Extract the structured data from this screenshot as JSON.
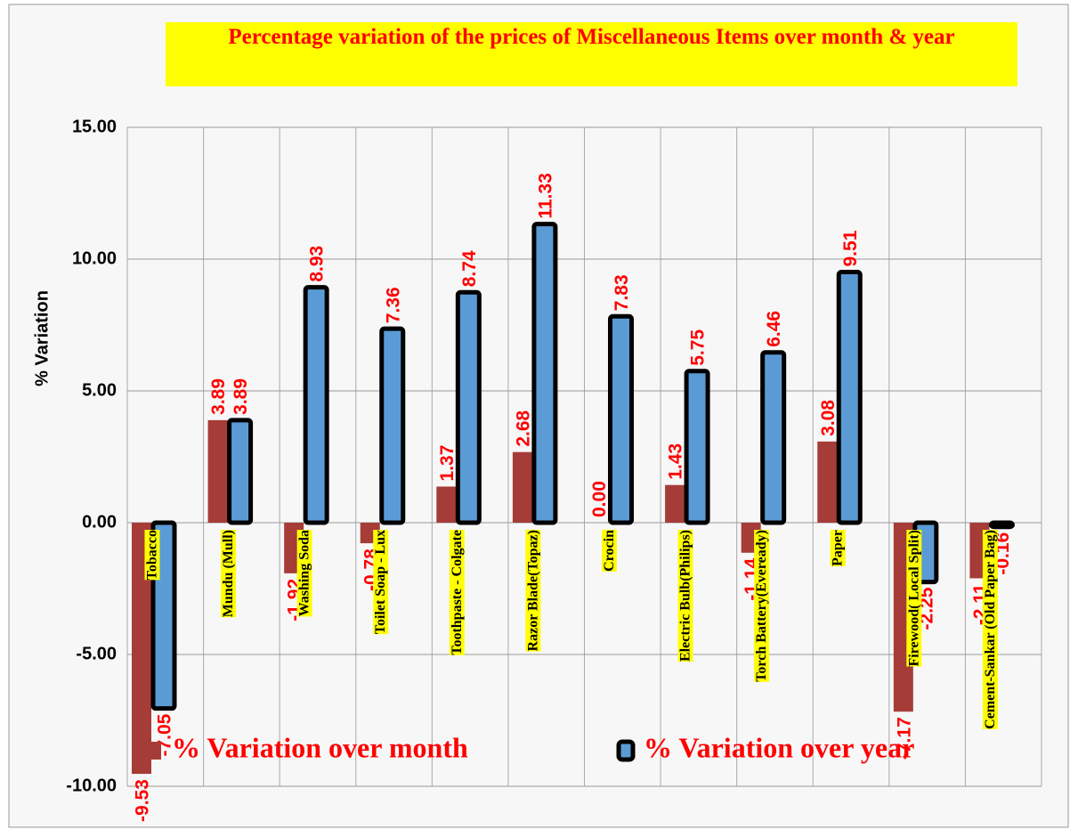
{
  "chart_data": {
    "type": "bar",
    "title": "Percentage variation of the prices of Miscellaneous Items over month & year",
    "y_label": "% Variation",
    "categories": [
      "Tobacco",
      "Mundu (Mull)",
      "Washing Soda",
      "Toilet Soap - Lux",
      "Toothpaste - Colgate",
      "Razor Blade(Topaz)",
      "Crocin",
      "Electric Bulb(Philips)",
      "Torch Battery(Eveready)",
      "Paper",
      "Firewood( Local Split)",
      "Cement-Sankar (Old Paper Bag)"
    ],
    "series": [
      {
        "name": "% Variation over month",
        "color": "#a63c38",
        "values": [
          -9.53,
          3.89,
          -1.92,
          -0.78,
          1.37,
          2.68,
          0,
          1.43,
          -1.14,
          3.08,
          -7.17,
          -2.11
        ],
        "value_labels": [
          "-9.53",
          "3.89",
          "-1.92",
          "-0.78",
          "1.37",
          "2.68",
          "0.00",
          "1.43",
          "-1.14",
          "3.08",
          "-7.17",
          "-2.11"
        ]
      },
      {
        "name": "% Variation over year",
        "color": "#5b9bd5",
        "values": [
          -7.05,
          3.89,
          8.93,
          7.36,
          8.74,
          11.33,
          7.83,
          5.75,
          6.46,
          9.51,
          -2.25,
          -0.16
        ],
        "value_labels": [
          "-7.05",
          "3.89",
          "8.93",
          "7.36",
          "8.74",
          "11.33",
          "7.83",
          "5.75",
          "6.46",
          "9.51",
          "-2.25",
          "-0.16"
        ]
      }
    ],
    "ylim": [
      -10,
      15
    ],
    "yticks": [
      {
        "value": -10,
        "label": "-10.00"
      },
      {
        "value": -5,
        "label": "-5.00"
      },
      {
        "value": 0,
        "label": "0.00"
      },
      {
        "value": 5,
        "label": "5.00"
      },
      {
        "value": 10,
        "label": "10.00"
      },
      {
        "value": 15,
        "label": "15.00"
      }
    ],
    "grid": true,
    "legend": "bottom"
  }
}
